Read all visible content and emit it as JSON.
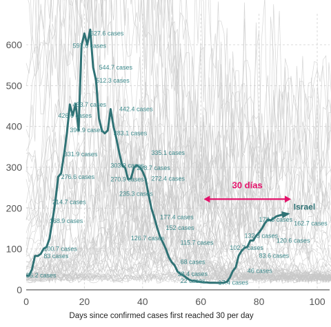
{
  "chart_data": {
    "type": "line",
    "xlabel": "Days since confirmed cases first reached 30 per day",
    "ylabel": "",
    "xlim": [
      0,
      105
    ],
    "ylim": [
      0,
      650
    ],
    "x_ticks": [
      0,
      20,
      40,
      60,
      80,
      100
    ],
    "y_ticks": [
      0,
      100,
      200,
      300,
      400,
      500,
      600
    ],
    "grid": true,
    "highlight_color": "#2f7275",
    "background_line_color": "#c8c8c8",
    "annotation": {
      "text": "30 días",
      "x_from": 61,
      "x_to": 91,
      "y": 222,
      "color": "#e3126a"
    },
    "series": [
      {
        "name": "Israel",
        "x": [
          0,
          1,
          2,
          3,
          4,
          5,
          6,
          7,
          8,
          9,
          10,
          11,
          12,
          13,
          14,
          15,
          16,
          17,
          18,
          19,
          20,
          21,
          22,
          23,
          24,
          25,
          26,
          27,
          28,
          29,
          30,
          31,
          32,
          33,
          34,
          35,
          36,
          37,
          38,
          39,
          40,
          41,
          42,
          43,
          44,
          45,
          46,
          47,
          48,
          49,
          50,
          51,
          52,
          53,
          54,
          55,
          56,
          57,
          58,
          59,
          60,
          61,
          62,
          63,
          64,
          65,
          66,
          67,
          68,
          69,
          70,
          71,
          72,
          73,
          74,
          75,
          76,
          77,
          78,
          79,
          80,
          81,
          82,
          83,
          84,
          85,
          86,
          87,
          88,
          89,
          90
        ],
        "y": [
          35.2,
          35,
          50,
          83,
          83,
          88,
          100.7,
          105,
          125,
          168.9,
          214.7,
          276.6,
          285,
          331.9,
          385,
          453.7,
          426.6,
          455,
          390.9,
          597.6,
          627.6,
          600,
          637,
          544.7,
          512.3,
          420,
          390,
          383.1,
          390,
          442.4,
          400,
          370,
          335.1,
          303.9,
          298.7,
          270.9,
          272.4,
          298.7,
          305,
          300,
          290,
          272.4,
          235.3,
          200,
          177.4,
          152,
          130,
          115.7,
          100,
          80,
          68,
          60,
          45,
          38.4,
          35,
          30,
          25,
          22,
          22,
          20,
          19,
          18,
          18,
          17.4,
          17.4,
          17.4,
          17,
          17.4,
          17.4,
          20,
          30,
          46,
          55,
          83.6,
          95,
          102.7,
          105,
          120.6,
          120.6,
          132.3,
          140,
          150,
          162.7,
          172.3,
          170,
          175,
          180,
          182,
          184,
          185,
          186
        ],
        "point_labels": [
          {
            "x": 0,
            "y": 35.2,
            "text": "35.2 cases"
          },
          {
            "x": 6,
            "y": 83,
            "text": "83 cases"
          },
          {
            "x": 6,
            "y": 100.7,
            "text": "100.7 cases"
          },
          {
            "x": 8,
            "y": 168.9,
            "text": "168.9 cases"
          },
          {
            "x": 9,
            "y": 214.7,
            "text": "214.7 cases"
          },
          {
            "x": 12,
            "y": 276.6,
            "text": "276.6 cases"
          },
          {
            "x": 13,
            "y": 331.9,
            "text": "331.9 cases"
          },
          {
            "x": 15,
            "y": 390.9,
            "text": "390.9 cases"
          },
          {
            "x": 11,
            "y": 426.6,
            "text": "426.6 cases"
          },
          {
            "x": 16,
            "y": 453.7,
            "text": "453.7 cases"
          },
          {
            "x": 16,
            "y": 597.6,
            "text": "597.6 cases"
          },
          {
            "x": 22,
            "y": 627.6,
            "text": "627.6 cases"
          },
          {
            "x": 25,
            "y": 544.7,
            "text": "544.7 cases"
          },
          {
            "x": 24,
            "y": 512.3,
            "text": "512.3 cases"
          },
          {
            "x": 32,
            "y": 442.4,
            "text": "442.4 cases"
          },
          {
            "x": 30,
            "y": 383.1,
            "text": "383.1 cases"
          },
          {
            "x": 43,
            "y": 335.1,
            "text": "335.1 cases"
          },
          {
            "x": 29,
            "y": 303.9,
            "text": "303.9 cases"
          },
          {
            "x": 38,
            "y": 298.7,
            "text": "298.7 cases"
          },
          {
            "x": 43,
            "y": 272.4,
            "text": "272.4 cases"
          },
          {
            "x": 29,
            "y": 270.9,
            "text": "270.9 cases"
          },
          {
            "x": 32,
            "y": 235.3,
            "text": "235.3 cases"
          },
          {
            "x": 46,
            "y": 177.4,
            "text": "177.4 cases"
          },
          {
            "x": 48,
            "y": 152,
            "text": "152 cases"
          },
          {
            "x": 36,
            "y": 126.7,
            "text": "126.7 cases"
          },
          {
            "x": 53,
            "y": 115.7,
            "text": "115.7 cases"
          },
          {
            "x": 53,
            "y": 68,
            "text": "68 cases"
          },
          {
            "x": 52,
            "y": 38.4,
            "text": "38.4 cases"
          },
          {
            "x": 53,
            "y": 22,
            "text": "22 cases"
          },
          {
            "x": 66,
            "y": 17.4,
            "text": "17.4 cases"
          },
          {
            "x": 76,
            "y": 46,
            "text": "46 cases"
          },
          {
            "x": 80,
            "y": 83.6,
            "text": "83.6 cases"
          },
          {
            "x": 70,
            "y": 102.7,
            "text": "102.7 cases"
          },
          {
            "x": 86,
            "y": 120.6,
            "text": "120.6 cases"
          },
          {
            "x": 75,
            "y": 132.3,
            "text": "132.3 cases"
          },
          {
            "x": 92,
            "y": 162.7,
            "text": "162.7 cases"
          },
          {
            "x": 80,
            "y": 172.3,
            "text": "172.3 cases"
          }
        ]
      }
    ]
  }
}
